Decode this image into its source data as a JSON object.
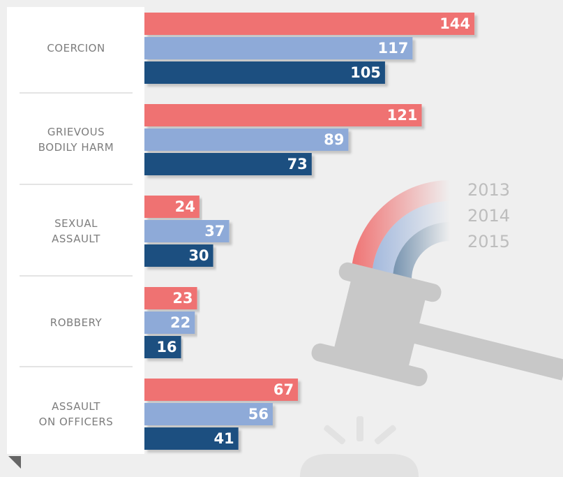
{
  "chart_data": {
    "type": "bar",
    "categories": [
      "COERCION",
      "GRIEVOUS\nBODILY HARM",
      "SEXUAL\nASSAULT",
      "ROBBERY",
      "ASSAULT\nON OFFICERS"
    ],
    "series": [
      {
        "name": "2013",
        "color": "#ef7272",
        "values": [
          144,
          121,
          24,
          23,
          67
        ]
      },
      {
        "name": "2014",
        "color": "#8eaad8",
        "values": [
          117,
          89,
          37,
          22,
          56
        ]
      },
      {
        "name": "2015",
        "color": "#1d4f80",
        "values": [
          105,
          73,
          30,
          16,
          41
        ]
      }
    ]
  }
}
